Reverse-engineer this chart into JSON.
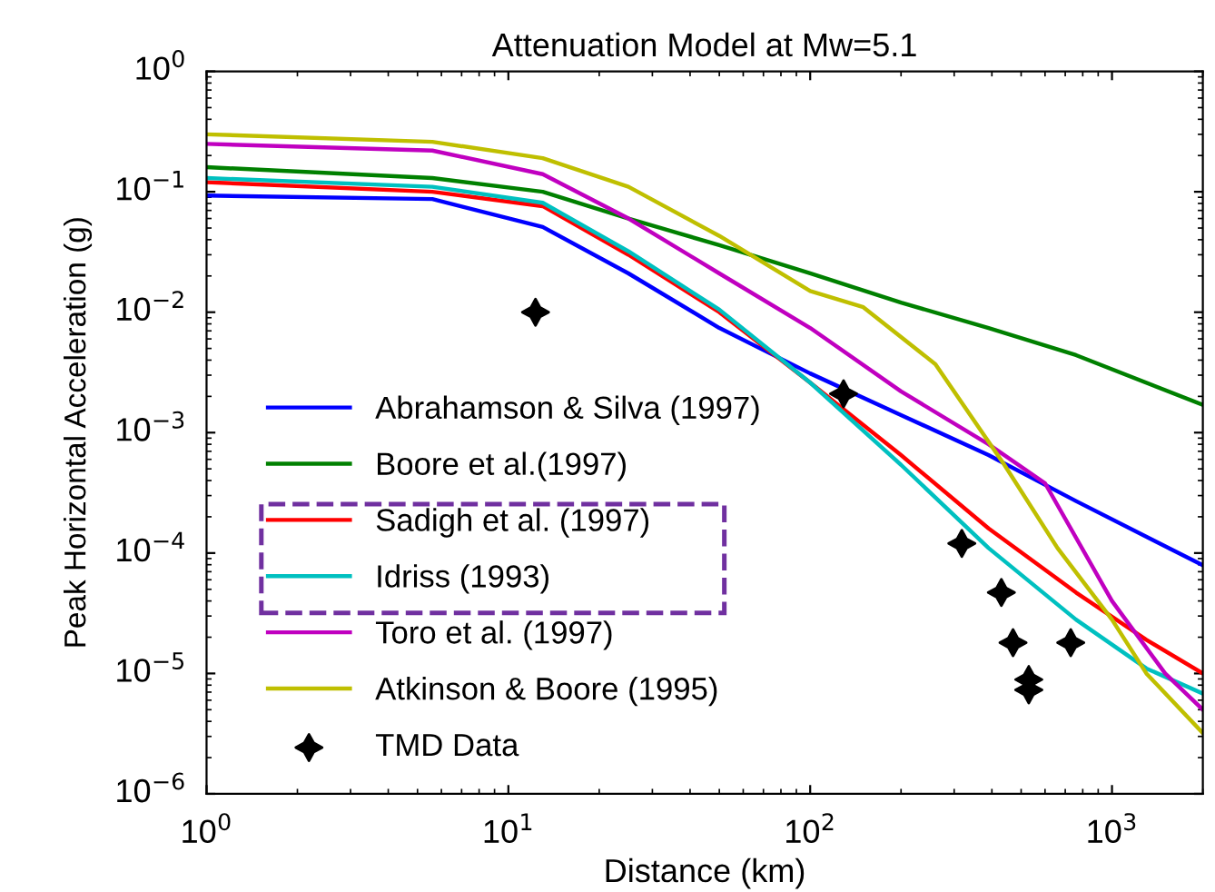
{
  "chart_data": {
    "type": "line",
    "title": "Attenuation Model at Mw=5.1",
    "xlabel": "Distance (km)",
    "ylabel": "Peak Horizontal Acceleration (g)",
    "log": "xy",
    "xlim": [
      1,
      2000
    ],
    "ylim": [
      1e-06,
      1
    ],
    "xticks": [
      {
        "value": 1,
        "label": "10$^{0}$"
      },
      {
        "value": 10,
        "label": "10$^{1}$"
      },
      {
        "value": 100,
        "label": "10$^{2}$"
      },
      {
        "value": 1000,
        "label": "10$^{3}$"
      }
    ],
    "yticks": [
      {
        "value": 1e-06,
        "label": "10$^{−6}$"
      },
      {
        "value": 1e-05,
        "label": "10$^{−5}$"
      },
      {
        "value": 0.0001,
        "label": "10$^{−4}$"
      },
      {
        "value": 0.001,
        "label": "10$^{−3}$"
      },
      {
        "value": 0.01,
        "label": "10$^{−2}$"
      },
      {
        "value": 0.1,
        "label": "10$^{−1}$"
      },
      {
        "value": 1,
        "label": "10$^{0}$"
      }
    ],
    "grid": false,
    "legend": "bottom left",
    "series": [
      {
        "name": "Abrahamson & Silva (1997)",
        "color": "#0000ff",
        "marker": "none",
        "x": [
          1,
          5.6,
          13,
          25,
          50,
          100,
          200,
          390,
          760,
          2000
        ],
        "values": [
          0.093,
          0.087,
          0.051,
          0.021,
          0.0074,
          0.0031,
          0.0014,
          0.00065,
          0.00027,
          7.9e-05
        ]
      },
      {
        "name": "Boore et al.(1997)",
        "color": "#008000",
        "marker": "none",
        "x": [
          1,
          5.6,
          13,
          25,
          50,
          100,
          200,
          390,
          760,
          2000
        ],
        "values": [
          0.16,
          0.13,
          0.1,
          0.06,
          0.036,
          0.021,
          0.012,
          0.0074,
          0.0044,
          0.0017
        ]
      },
      {
        "name": "Sadigh et al. (1997)",
        "color": "#ff0000",
        "marker": "none",
        "x": [
          1,
          5.6,
          13,
          25,
          50,
          100,
          200,
          390,
          760,
          1300,
          2000
        ],
        "values": [
          0.12,
          0.1,
          0.076,
          0.03,
          0.01,
          0.0026,
          0.00065,
          0.00016,
          4.7e-05,
          1.9e-05,
          1e-05
        ]
      },
      {
        "name": "Idriss (1993)",
        "color": "#00c0c0",
        "marker": "none",
        "x": [
          1,
          5.6,
          13,
          25,
          50,
          100,
          200,
          390,
          760,
          1300,
          2000
        ],
        "values": [
          0.13,
          0.11,
          0.081,
          0.032,
          0.0105,
          0.0026,
          0.00054,
          0.00011,
          2.8e-05,
          1.1e-05,
          6.8e-06
        ]
      },
      {
        "name": "Toro et al. (1997)",
        "color": "#c000c0",
        "marker": "none",
        "x": [
          1,
          5.6,
          13,
          25,
          50,
          100,
          200,
          390,
          600,
          1000,
          1500,
          2000
        ],
        "values": [
          0.25,
          0.22,
          0.14,
          0.06,
          0.021,
          0.0074,
          0.0022,
          0.0008,
          0.00038,
          4e-05,
          1e-05,
          5e-06
        ]
      },
      {
        "name": "Atkinson & Boore (1995)",
        "color": "#bfbf00",
        "marker": "none",
        "x": [
          1,
          5.6,
          13,
          25,
          50,
          100,
          150,
          260,
          440,
          660,
          1000,
          1300,
          2000
        ],
        "values": [
          0.3,
          0.26,
          0.19,
          0.11,
          0.043,
          0.015,
          0.011,
          0.0037,
          0.00054,
          0.00011,
          2.8e-05,
          1e-05,
          3.2e-06
        ]
      },
      {
        "name": "TMD Data",
        "type": "scatter",
        "color": "#000000",
        "marker": "star",
        "x": [
          12.3,
          129,
          318,
          430,
          470,
          730,
          530,
          530
        ],
        "values": [
          0.01,
          0.0021,
          0.00012,
          4.7e-05,
          1.8e-05,
          1.8e-05,
          8.9e-06,
          7.3e-06
        ]
      }
    ]
  }
}
